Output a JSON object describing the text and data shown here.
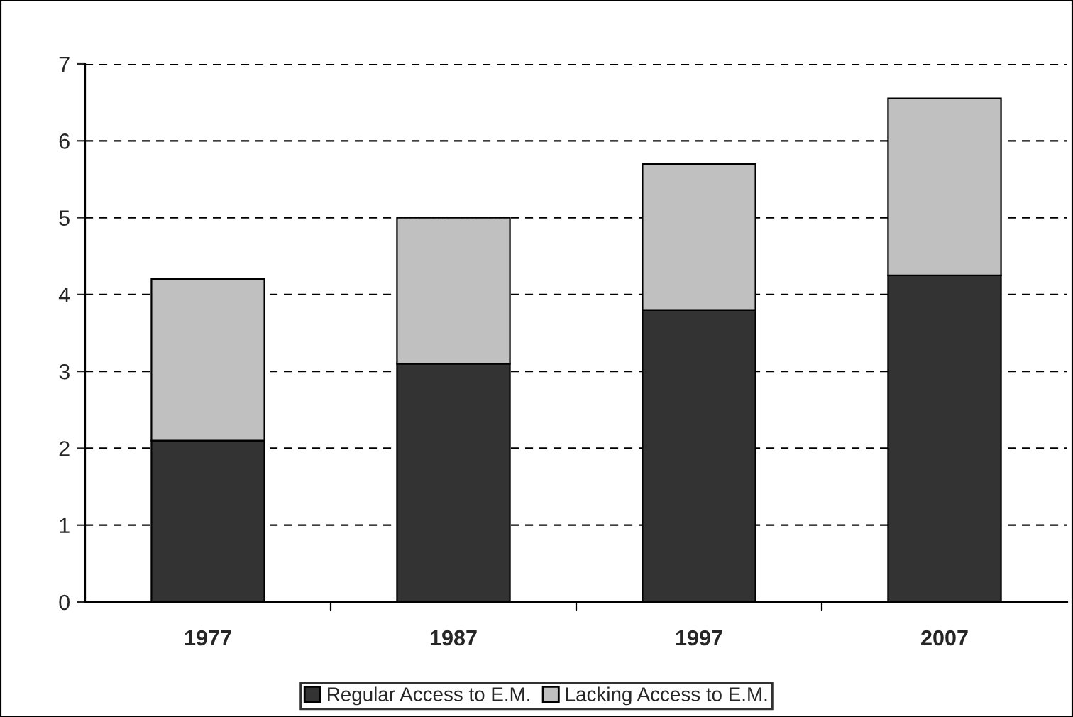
{
  "chart_data": {
    "type": "bar",
    "stacked": true,
    "categories": [
      "1977",
      "1987",
      "1997",
      "2007"
    ],
    "series": [
      {
        "name": "Regular Access to E.M.",
        "color": "#333333",
        "values": [
          2.1,
          3.1,
          3.8,
          4.25
        ]
      },
      {
        "name": "Lacking Access to E.M.",
        "color": "#c0c0c0",
        "values": [
          2.1,
          1.9,
          1.9,
          2.3
        ]
      }
    ],
    "ylim": [
      0,
      7
    ],
    "yticks": [
      0,
      1,
      2,
      3,
      4,
      5,
      6,
      7
    ],
    "grid": "y",
    "legend": "bottom"
  }
}
